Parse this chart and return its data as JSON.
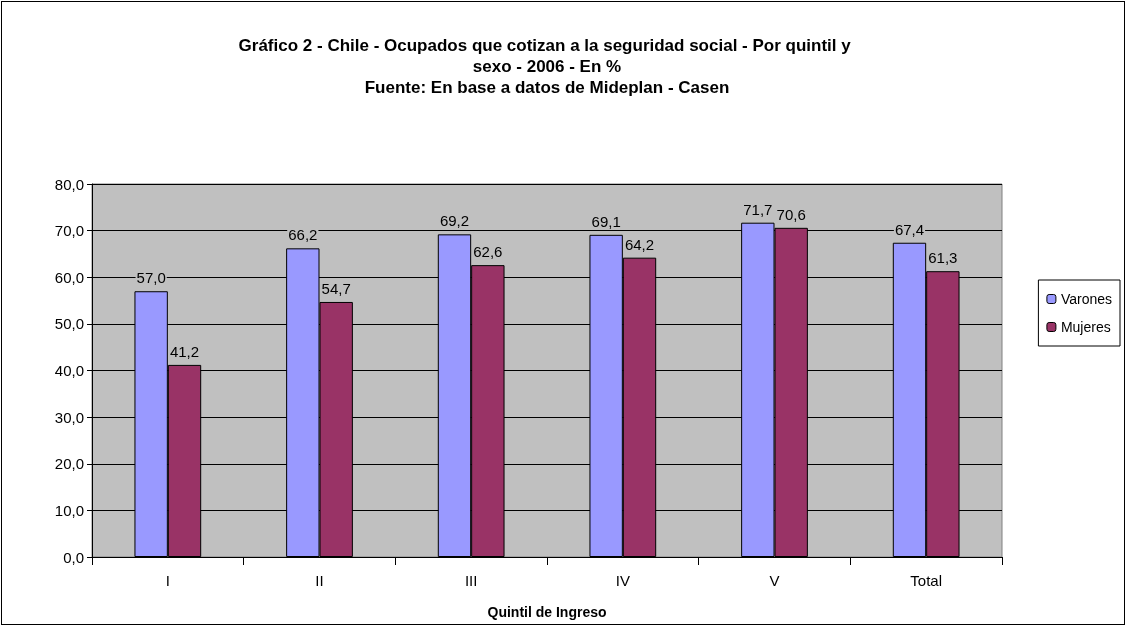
{
  "chart_data": {
    "type": "bar",
    "title": "Gráfico 2 - Chile - Ocupados que cotizan a la seguridad social - Por quintil y sexo - 2006 - En %",
    "subtitle": "Fuente: En base a datos de Mideplan - Casen",
    "xlabel": "Quintil de Ingreso",
    "categories": [
      "I",
      "II",
      "III",
      "IV",
      "V",
      "Total"
    ],
    "series": [
      {
        "name": "Varones",
        "color": "#9999ff",
        "values": [
          57.0,
          66.2,
          69.2,
          69.1,
          71.7,
          67.4
        ],
        "value_labels": [
          "57,0",
          "66,2",
          "69,2",
          "69,1",
          "71,7",
          "67,4"
        ]
      },
      {
        "name": "Mujeres",
        "color": "#993366",
        "values": [
          41.2,
          54.7,
          62.6,
          64.2,
          70.6,
          61.3
        ],
        "value_labels": [
          "41,2",
          "54,7",
          "62,6",
          "64,2",
          "70,6",
          "61,3"
        ]
      }
    ],
    "ylim": [
      0,
      80
    ],
    "yticks": [
      {
        "value": 0,
        "label": "0,0"
      },
      {
        "value": 10,
        "label": "10,0"
      },
      {
        "value": 20,
        "label": "20,0"
      },
      {
        "value": 30,
        "label": "30,0"
      },
      {
        "value": 40,
        "label": "40,0"
      },
      {
        "value": 50,
        "label": "50,0"
      },
      {
        "value": 60,
        "label": "60,0"
      },
      {
        "value": 70,
        "label": "70,0"
      },
      {
        "value": 80,
        "label": "80,0"
      }
    ],
    "grid": "y",
    "legend": "right"
  }
}
